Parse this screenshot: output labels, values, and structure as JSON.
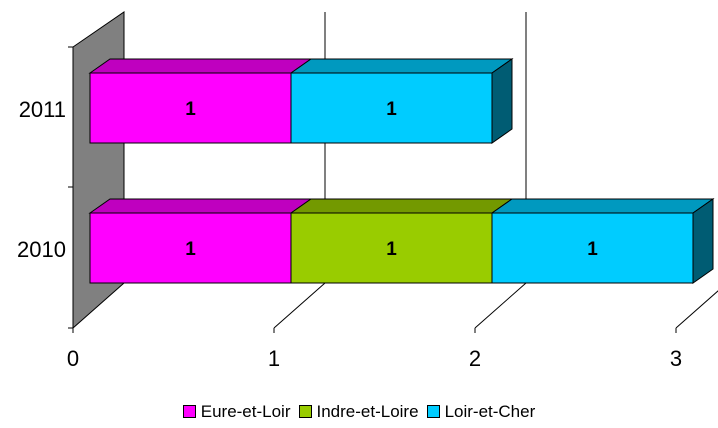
{
  "chart_data": {
    "type": "bar",
    "orientation": "horizontal",
    "stacked": true,
    "three_d": true,
    "categories": [
      "2011",
      "2010"
    ],
    "series": [
      {
        "name": "Eure-et-Loir",
        "color": "#ff00ff",
        "values": [
          1,
          1
        ]
      },
      {
        "name": "Indre-et-Loire",
        "color": "#99cc00",
        "values": [
          null,
          1
        ]
      },
      {
        "name": "Loir-et-Cher",
        "color": "#00ccff",
        "values": [
          1,
          1
        ]
      }
    ],
    "data_labels": true,
    "xlim": [
      0,
      3
    ],
    "x_ticks": [
      "0",
      "1",
      "2",
      "3"
    ],
    "grid": "vertical",
    "legend_position": "bottom",
    "title": "",
    "xlabel": "",
    "ylabel": ""
  }
}
